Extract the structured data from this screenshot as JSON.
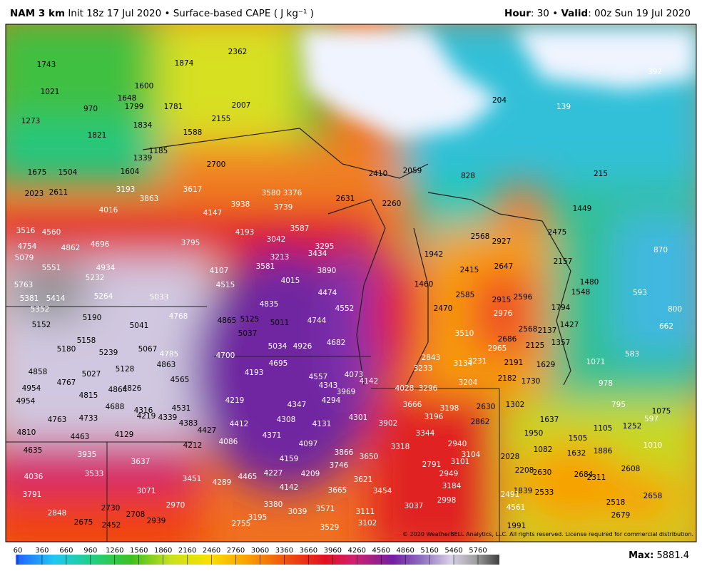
{
  "header": {
    "model": "NAM 3 km",
    "init": "Init 18z 17 Jul 2020",
    "separator": "•",
    "field": "Surface-based CAPE ( J kg⁻¹ )",
    "hour_label": "Hour",
    "hour": ": 30",
    "valid_label": "Valid",
    "valid": ": 00z Sun 19 Jul 2020"
  },
  "map": {
    "copyright": "© 2020 WeatherBELL Analytics, LLC. All rights reserved. License required for commercial distribution.",
    "labels": [
      "2362",
      "1874",
      "1743",
      "1600",
      "1021",
      "1648",
      "970",
      "1799",
      "1781",
      "2007",
      "2155",
      "1273",
      "1834",
      "1821",
      "1588",
      "392",
      "139",
      "204",
      "1185",
      "1339",
      "2700",
      "1675",
      "1504",
      "1604",
      "2410",
      "2059",
      "828",
      "215",
      "2023",
      "2611",
      "3193",
      "3863",
      "3617",
      "3580",
      "3376",
      "2631",
      "2260",
      "1449",
      "3938",
      "3739",
      "4016",
      "4147",
      "3516",
      "4560",
      "4193",
      "3587",
      "3042",
      "2568",
      "2927",
      "2475",
      "4754",
      "4862",
      "4696",
      "3795",
      "3295",
      "5079",
      "3213",
      "3434",
      "1942",
      "2415",
      "2647",
      "2157",
      "870",
      "5551",
      "4934",
      "4107",
      "3581",
      "3890",
      "5763",
      "5232",
      "4015",
      "4515",
      "1460",
      "1480",
      "5381",
      "5414",
      "5264",
      "5033",
      "4474",
      "2585",
      "2915",
      "2596",
      "1548",
      "593",
      "5352",
      "4835",
      "4552",
      "2470",
      "2976",
      "1794",
      "800",
      "5190",
      "4768",
      "4865",
      "5125",
      "5152",
      "5041",
      "5011",
      "4744",
      "1427",
      "662",
      "5037",
      "3510",
      "2568",
      "2137",
      "5158",
      "5034",
      "4926",
      "4682",
      "2686",
      "2125",
      "1357",
      "5180",
      "5067",
      "5239",
      "4785",
      "4700",
      "2965",
      "583",
      "2843",
      "3134",
      "3231",
      "2191",
      "1629",
      "1071",
      "4858",
      "5027",
      "5128",
      "4863",
      "4565",
      "4193",
      "4695",
      "4557",
      "4073",
      "4142",
      "3233",
      "2182",
      "1730",
      "4954",
      "4767",
      "4343",
      "3969",
      "4028",
      "3296",
      "3204",
      "978",
      "4815",
      "4864",
      "4826",
      "4219",
      "4294",
      "3666",
      "3198",
      "2630",
      "1302",
      "795",
      "1075",
      "4954",
      "4688",
      "4316",
      "4531",
      "4347",
      "3196",
      "597",
      "4763",
      "4733",
      "4219",
      "4339",
      "4383",
      "4412",
      "4308",
      "4131",
      "4301",
      "3902",
      "2862",
      "1637",
      "1105",
      "1252",
      "4810",
      "4129",
      "4427",
      "4371",
      "3344",
      "1950",
      "1505",
      "4463",
      "4086",
      "4097",
      "2940",
      "1010",
      "4635",
      "4212",
      "3318",
      "3935",
      "3866",
      "3650",
      "2028",
      "1082",
      "1632",
      "1886",
      "3637",
      "4159",
      "3746",
      "2791",
      "3101",
      "3104",
      "2208",
      "2630",
      "2684",
      "2608",
      "4036",
      "3533",
      "3451",
      "4465",
      "4227",
      "4209",
      "3621",
      "2949",
      "2311",
      "3791",
      "3071",
      "4289",
      "4142",
      "3665",
      "3454",
      "3184",
      "1839",
      "2533",
      "2491",
      "2658",
      "2970",
      "2998",
      "2518",
      "2730",
      "3380",
      "3037",
      "2848",
      "2708",
      "3039",
      "3571",
      "3111",
      "4561",
      "2679",
      "2675",
      "2939",
      "2452",
      "2755",
      "3195",
      "3102",
      "3529",
      "1991"
    ]
  },
  "colorbar": {
    "ticks": [
      60,
      360,
      660,
      960,
      1260,
      1560,
      1860,
      2160,
      2460,
      2760,
      3060,
      3360,
      3660,
      3960,
      4260,
      4560,
      4860,
      5160,
      5460,
      5760
    ],
    "max_label": "Max:",
    "max": "5881.4"
  }
}
